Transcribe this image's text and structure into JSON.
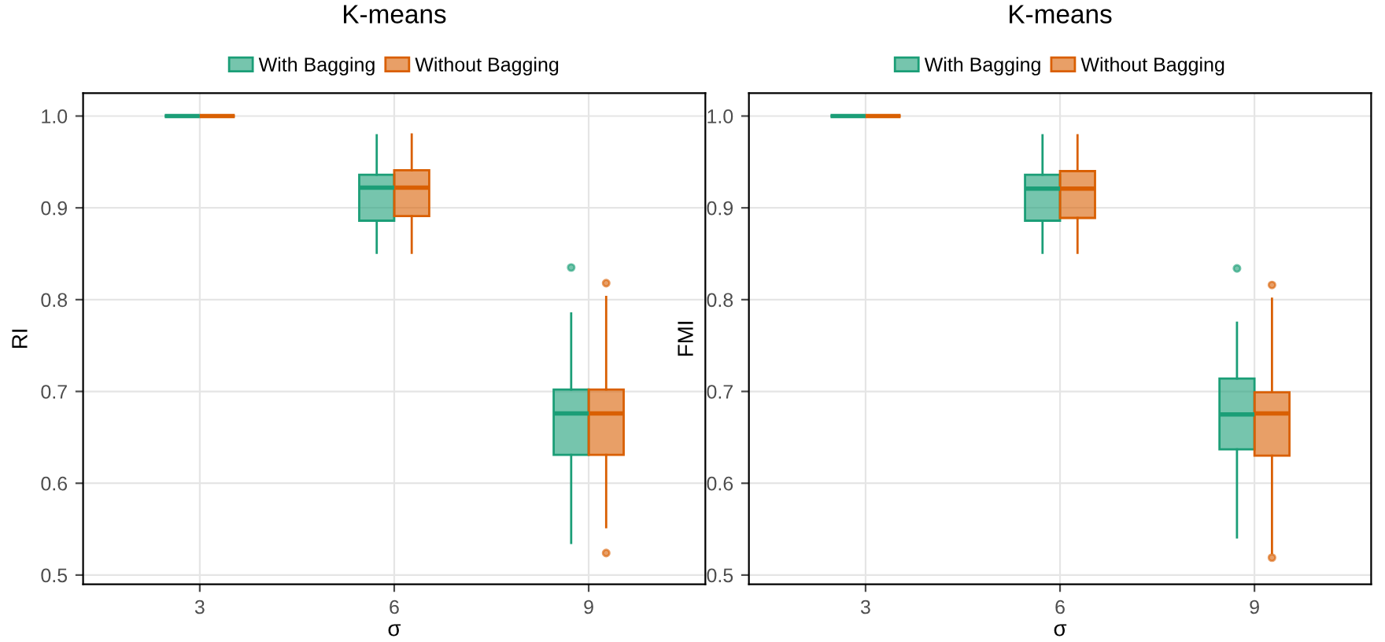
{
  "chart_data": [
    {
      "type": "box",
      "title": "K-means",
      "xlabel": "σ",
      "ylabel": "RI",
      "categories": [
        "3",
        "6",
        "9"
      ],
      "ylim": [
        0.49,
        1.025
      ],
      "yticks": [
        0.5,
        0.6,
        0.7,
        0.8,
        0.9,
        {
          "value": 1,
          "label": "1.0"
        }
      ],
      "grid": true,
      "legend": "top",
      "series": [
        {
          "name": "With Bagging",
          "color": "#1b9e77",
          "boxes": [
            {
              "low": 1.0,
              "q1": 1.0,
              "median": 1.0,
              "q3": 1.0,
              "high": 1.0
            },
            {
              "low": 0.851,
              "q1": 0.886,
              "median": 0.922,
              "q3": 0.936,
              "high": 0.979
            },
            {
              "low": 0.535,
              "q1": 0.631,
              "median": 0.676,
              "q3": 0.702,
              "high": 0.785,
              "outliers": [
                0.835
              ]
            }
          ]
        },
        {
          "name": "Without Bagging",
          "color": "#d95f02",
          "boxes": [
            {
              "low": 1.0,
              "q1": 1.0,
              "median": 1.0,
              "q3": 1.0,
              "high": 1.0
            },
            {
              "low": 0.851,
              "q1": 0.891,
              "median": 0.922,
              "q3": 0.941,
              "high": 0.98
            },
            {
              "low": 0.552,
              "q1": 0.631,
              "median": 0.676,
              "q3": 0.702,
              "high": 0.803,
              "outliers": [
                0.818,
                0.524
              ]
            }
          ]
        }
      ]
    },
    {
      "type": "box",
      "title": "K-means",
      "xlabel": "σ",
      "ylabel": "FMI",
      "categories": [
        "3",
        "6",
        "9"
      ],
      "ylim": [
        0.49,
        1.025
      ],
      "yticks": [
        0.5,
        0.6,
        0.7,
        0.8,
        0.9,
        {
          "value": 1,
          "label": "1.0"
        }
      ],
      "grid": true,
      "legend": "top",
      "series": [
        {
          "name": "With Bagging",
          "color": "#1b9e77",
          "boxes": [
            {
              "low": 1.0,
              "q1": 1.0,
              "median": 1.0,
              "q3": 1.0,
              "high": 1.0
            },
            {
              "low": 0.851,
              "q1": 0.886,
              "median": 0.921,
              "q3": 0.936,
              "high": 0.979
            },
            {
              "low": 0.541,
              "q1": 0.637,
              "median": 0.675,
              "q3": 0.714,
              "high": 0.775,
              "outliers": [
                0.834
              ]
            }
          ]
        },
        {
          "name": "Without Bagging",
          "color": "#d95f02",
          "boxes": [
            {
              "low": 1.0,
              "q1": 1.0,
              "median": 1.0,
              "q3": 1.0,
              "high": 1.0
            },
            {
              "low": 0.851,
              "q1": 0.889,
              "median": 0.921,
              "q3": 0.94,
              "high": 0.979
            },
            {
              "low": 0.524,
              "q1": 0.63,
              "median": 0.676,
              "q3": 0.699,
              "high": 0.801,
              "outliers": [
                0.816,
                0.519
              ]
            }
          ]
        }
      ]
    }
  ]
}
